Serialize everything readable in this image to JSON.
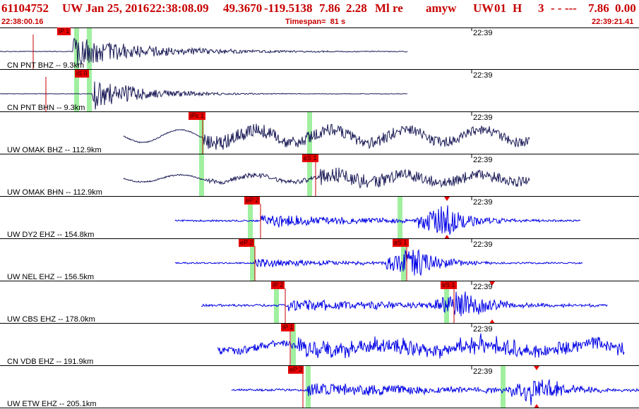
{
  "header": {
    "event_id": "61104752",
    "network": "UW",
    "date": "Jan 25, 2016",
    "time": "22:38:08.09",
    "lat": "49.3670",
    "lon": "-119.5138",
    "depth": "7.86",
    "magnitude": "2.28",
    "mag_type": "Ml",
    "review": "re",
    "author": "amyw",
    "source": "UW",
    "version": "01",
    "flag": "H",
    "count": "3",
    "dashes": "- - ---",
    "depth_repeat": "7.86",
    "zero": "0.00",
    "start_time": "22:38:00.16",
    "timespan": "Timespan=  81 s",
    "end_time": "22:39:21.41"
  },
  "colors": {
    "header_text": "#c80000",
    "trace_dark": "#1e1e5a",
    "trace_blue": "#0000e6",
    "pick_box": "#e60000",
    "pick_text": "#3a0000",
    "pick_line": "#c80000",
    "window_band": "#a0f0a0",
    "divider": "#000000"
  },
  "panels": [
    {
      "label": "CN PNT BHZ -- 9.3km",
      "tick": "22:39",
      "picks": [
        {
          "label": "iP 1",
          "t": 4.2
        }
      ]
    },
    {
      "label": "CN PNT BHN -- 9.3km",
      "tick": "22:39",
      "picks": [
        {
          "label": "iS 0",
          "t": 5.8
        }
      ]
    },
    {
      "label": "UW OMAK BHZ -- 112.9km",
      "tick": "22:39",
      "picks": [
        {
          "label": "iPc 1",
          "t": 25.8
        }
      ]
    },
    {
      "label": "UW OMAK BHN -- 112.9km",
      "tick": "22:39",
      "picks": [
        {
          "label": "eS 1",
          "t": 40.1
        }
      ]
    },
    {
      "label": "UW DY2 EHZ -- 154.8km",
      "tick": "22:39",
      "picks": [
        {
          "label": "eP 2",
          "t": 33.1
        }
      ]
    },
    {
      "label": "UW NEL EHZ -- 156.5km",
      "tick": "22:39",
      "picks": [
        {
          "label": "eP 2",
          "t": 32.4
        },
        {
          "label": "eS 1",
          "t": 51.7
        }
      ]
    },
    {
      "label": "UW CBS EHZ -- 178.0km",
      "tick": "22:39",
      "picks": [
        {
          "label": "iP 2",
          "t": 36.3
        },
        {
          "label": "eS 1",
          "t": 57.7
        }
      ]
    },
    {
      "label": "CN VDB EHZ -- 191.9km",
      "tick": "22:39",
      "picks": [
        {
          "label": "iP 1",
          "t": 36.9
        }
      ]
    },
    {
      "label": "UW ETW EHZ -- 205.1km",
      "tick": "22:39",
      "picks": [
        {
          "label": "eP 2",
          "t": 38.5
        }
      ]
    }
  ]
}
